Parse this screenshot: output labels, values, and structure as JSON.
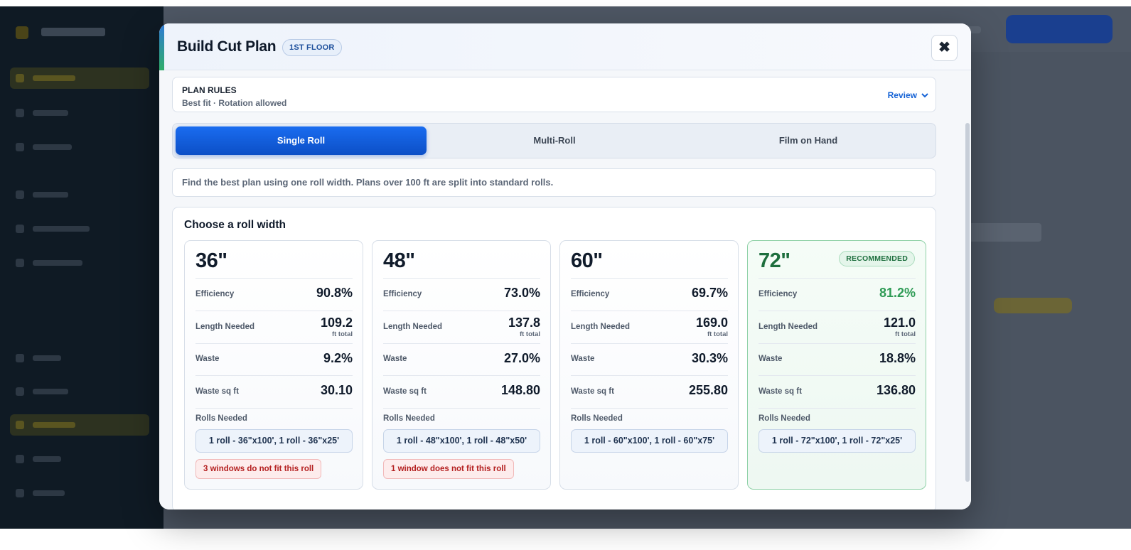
{
  "modal": {
    "title": "Build Cut Plan",
    "floor_badge": "1ST FLOOR",
    "close_glyph": "✖"
  },
  "plan_rules": {
    "title": "PLAN RULES",
    "summary": "Best fit · Rotation allowed",
    "review_label": "Review",
    "review_icon": "chevron-down-icon"
  },
  "tabs": [
    {
      "label": "Single Roll",
      "active": true
    },
    {
      "label": "Multi-Roll",
      "active": false
    },
    {
      "label": "Film on Hand",
      "active": false
    }
  ],
  "description": "Find the best plan using one roll width. Plans over 100 ft are split into standard rolls.",
  "roll_widths": {
    "title": "Choose a roll width",
    "stat_labels": {
      "efficiency": "Efficiency",
      "length": "Length Needed",
      "length_unit": "ft total",
      "waste": "Waste",
      "waste_sqft": "Waste sq ft",
      "rolls": "Rolls Needed"
    },
    "cards": [
      {
        "width": "36\"",
        "efficiency": "90.8%",
        "length": "109.2",
        "waste": "9.2%",
        "waste_sqft": "30.10",
        "rolls": "1 roll - 36\"x100', 1 roll - 36\"x25'",
        "warning": "3 windows do not fit this roll",
        "recommended": false
      },
      {
        "width": "48\"",
        "efficiency": "73.0%",
        "length": "137.8",
        "waste": "27.0%",
        "waste_sqft": "148.80",
        "rolls": "1 roll - 48\"x100', 1 roll - 48\"x50'",
        "warning": "1 window does not fit this roll",
        "recommended": false
      },
      {
        "width": "60\"",
        "efficiency": "69.7%",
        "length": "169.0",
        "waste": "30.3%",
        "waste_sqft": "255.80",
        "rolls": "1 roll - 60\"x100', 1 roll - 60\"x75'",
        "warning": "",
        "recommended": false
      },
      {
        "width": "72\"",
        "efficiency": "81.2%",
        "length": "121.0",
        "waste": "18.8%",
        "waste_sqft": "136.80",
        "rolls": "1 roll - 72\"x100', 1 roll - 72\"x25'",
        "warning": "",
        "recommended": true,
        "badge": "RECOMMENDED"
      }
    ]
  },
  "colors": {
    "primary": "#1663d6",
    "recommended": "#2e9b55",
    "warning": "#b42020"
  }
}
